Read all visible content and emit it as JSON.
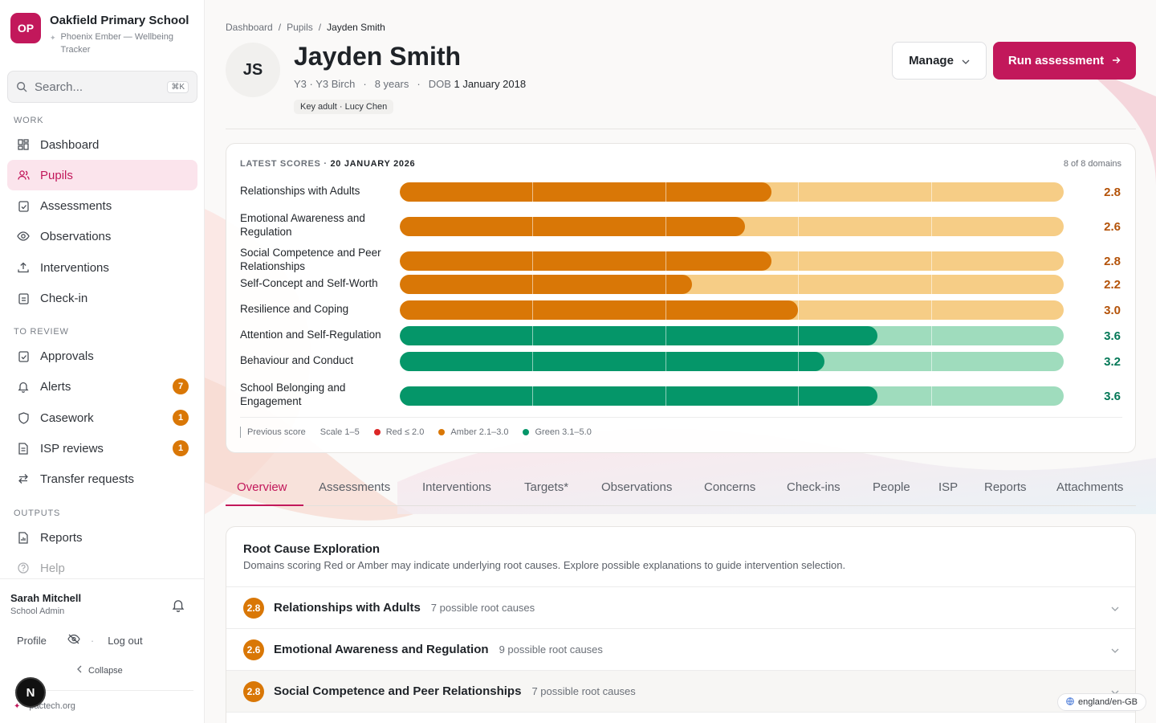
{
  "org": {
    "initials": "OP",
    "name": "Oakfield Primary School",
    "subtitle": "Phoenix Ember — Wellbeing Tracker"
  },
  "search": {
    "placeholder": "Search...",
    "shortcut": "⌘K"
  },
  "nav": {
    "work_label": "WORK",
    "review_label": "TO REVIEW",
    "outputs_label": "OUTPUTS",
    "work": [
      {
        "label": "Dashboard",
        "icon": "dashboard-icon"
      },
      {
        "label": "Pupils",
        "icon": "users-icon",
        "active": true
      },
      {
        "label": "Assessments",
        "icon": "clipboard-check-icon"
      },
      {
        "label": "Observations",
        "icon": "eye-icon"
      },
      {
        "label": "Interventions",
        "icon": "upload-icon"
      },
      {
        "label": "Check-in",
        "icon": "clipboard-icon"
      }
    ],
    "review": [
      {
        "label": "Approvals",
        "icon": "clipboard-check-icon"
      },
      {
        "label": "Alerts",
        "icon": "bell-icon",
        "badge": "7"
      },
      {
        "label": "Casework",
        "icon": "shield-icon",
        "badge": "1"
      },
      {
        "label": "ISP reviews",
        "icon": "document-icon",
        "badge": "1"
      },
      {
        "label": "Transfer requests",
        "icon": "transfer-icon"
      }
    ],
    "outputs": [
      {
        "label": "Reports",
        "icon": "report-icon"
      },
      {
        "label": "Help",
        "icon": "help-icon"
      }
    ]
  },
  "user": {
    "name": "Sarah Mitchell",
    "role": "School Admin",
    "profile": "Profile",
    "logout": "Log out",
    "collapse": "Collapse",
    "site": "pactech.org",
    "dev_badge": "N"
  },
  "breadcrumb": [
    "Dashboard",
    "Pupils",
    "Jayden Smith"
  ],
  "pupil": {
    "initials": "JS",
    "name": "Jayden Smith",
    "year": "Y3 · Y3 Birch",
    "age": "8 years",
    "dob_label": "DOB",
    "dob": "1 January 2018",
    "key_adult": "Key adult · Lucy Chen"
  },
  "actions": {
    "manage": "Manage",
    "run": "Run assessment"
  },
  "scores": {
    "title": "LATEST SCORES · ",
    "date": "20 JANUARY 2026",
    "count": "8 of 8 domains",
    "legend": {
      "previous": "Previous score",
      "scale": "Scale 1–5",
      "red": "Red ≤ 2.0",
      "amber": "Amber 2.1–3.0",
      "green": "Green 3.1–5.0"
    },
    "colors": {
      "red": "#dc2626",
      "amber": "#d97706",
      "amber_light": "#f6cd86",
      "green": "#059669",
      "green_light": "#9fdcbd"
    }
  },
  "chart_data": {
    "type": "bar",
    "orientation": "horizontal",
    "xlim": [
      0,
      5
    ],
    "categories": [
      "Relationships with Adults",
      "Emotional Awareness and Regulation",
      "Social Competence and Peer Relationships",
      "Self-Concept and Self-Worth",
      "Resilience and Coping",
      "Attention and Self-Regulation",
      "Behaviour and Conduct",
      "School Belonging and Engagement"
    ],
    "values": [
      2.8,
      2.6,
      2.8,
      2.2,
      3.0,
      3.6,
      3.2,
      3.6
    ],
    "labels": [
      "2.8",
      "2.6",
      "2.8",
      "2.2",
      "3.0",
      "3.6",
      "3.2",
      "3.6"
    ],
    "bands": [
      "amber",
      "amber",
      "amber",
      "amber",
      "amber",
      "green",
      "green",
      "green"
    ],
    "grid": true
  },
  "tabs": [
    "Overview",
    "Assessments",
    "Interventions",
    "Targets*",
    "Observations",
    "Concerns",
    "Check-ins",
    "People",
    "ISP",
    "Reports",
    "Attachments"
  ],
  "root_causes": {
    "title": "Root Cause Exploration",
    "subtitle": "Domains scoring Red or Amber may indicate underlying root causes. Explore possible explanations to guide intervention selection.",
    "items": [
      {
        "score": "2.8",
        "name": "Relationships with Adults",
        "count": "7 possible root causes"
      },
      {
        "score": "2.6",
        "name": "Emotional Awareness and Regulation",
        "count": "9 possible root causes"
      },
      {
        "score": "2.8",
        "name": "Social Competence and Peer Relationships",
        "count": "7 possible root causes"
      }
    ]
  },
  "locale": "england/en-GB"
}
